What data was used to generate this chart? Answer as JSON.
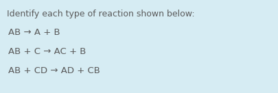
{
  "background_color": "#d6ecf3",
  "title_text": "Identify each type of reaction shown below:",
  "title_color": "#5a5a5a",
  "title_fontsize": 9.0,
  "lines": [
    {
      "text": "AB → A + B"
    },
    {
      "text": "AB + C → AC + B"
    },
    {
      "text": "AB + CD → AD + CB"
    }
  ],
  "line_fontsize": 9.5,
  "line_color": "#5a5a5a",
  "font_family": "DejaVu Sans"
}
